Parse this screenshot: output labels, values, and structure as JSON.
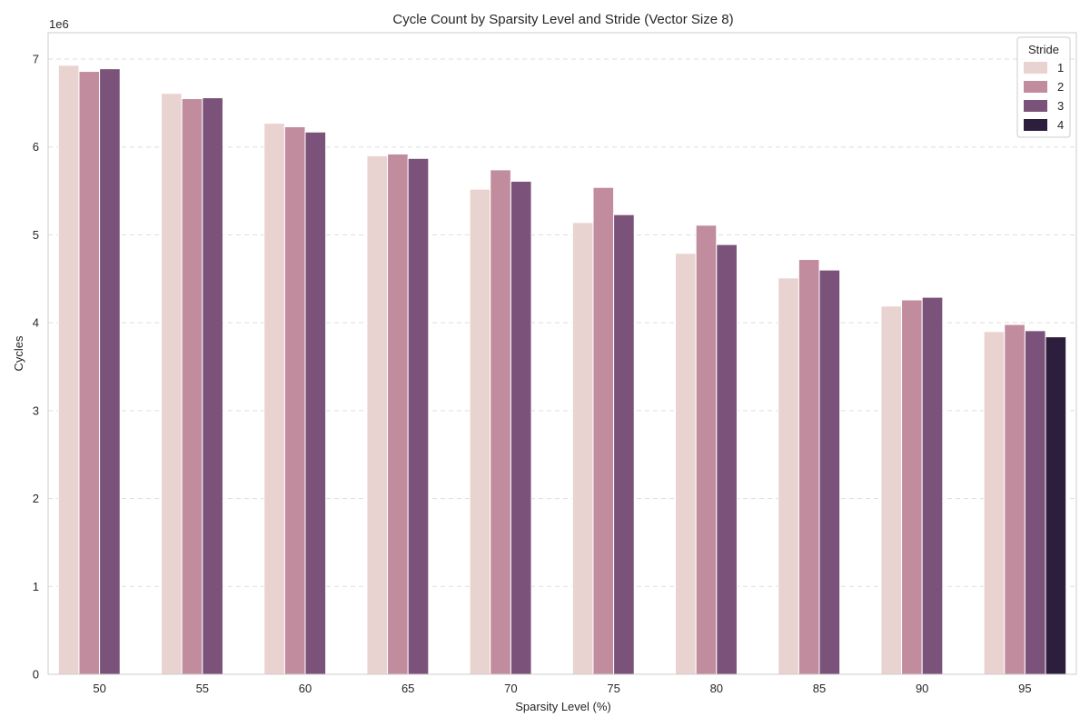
{
  "chart_data": {
    "type": "bar",
    "title": "Cycle Count by Sparsity Level and Stride (Vector Size 8)",
    "xlabel": "Sparsity Level (%)",
    "ylabel": "Cycles",
    "y_offset_text": "1e6",
    "y_multiplier": 1000000,
    "ylim": [
      0,
      7300000
    ],
    "yticks": [
      0,
      1,
      2,
      3,
      4,
      5,
      6,
      7
    ],
    "grid": true,
    "legend": {
      "title": "Stride",
      "placement": "top-right"
    },
    "categories": [
      "50",
      "55",
      "60",
      "65",
      "70",
      "75",
      "80",
      "85",
      "90",
      "95"
    ],
    "series": [
      {
        "name": "1",
        "color": "#e9d3d0",
        "values": [
          6930000,
          6610000,
          6270000,
          5900000,
          5520000,
          5140000,
          4790000,
          4510000,
          4190000,
          3900000
        ]
      },
      {
        "name": "2",
        "color": "#c28c9f",
        "values": [
          6860000,
          6550000,
          6230000,
          5920000,
          5740000,
          5540000,
          5110000,
          4720000,
          4260000,
          3980000
        ]
      },
      {
        "name": "3",
        "color": "#7b5279",
        "values": [
          6890000,
          6560000,
          6170000,
          5870000,
          5610000,
          5230000,
          4890000,
          4600000,
          4290000,
          3910000
        ]
      },
      {
        "name": "4",
        "color": "#2d1e3e",
        "values": [
          null,
          null,
          null,
          null,
          null,
          null,
          null,
          null,
          null,
          3840000
        ]
      }
    ]
  }
}
